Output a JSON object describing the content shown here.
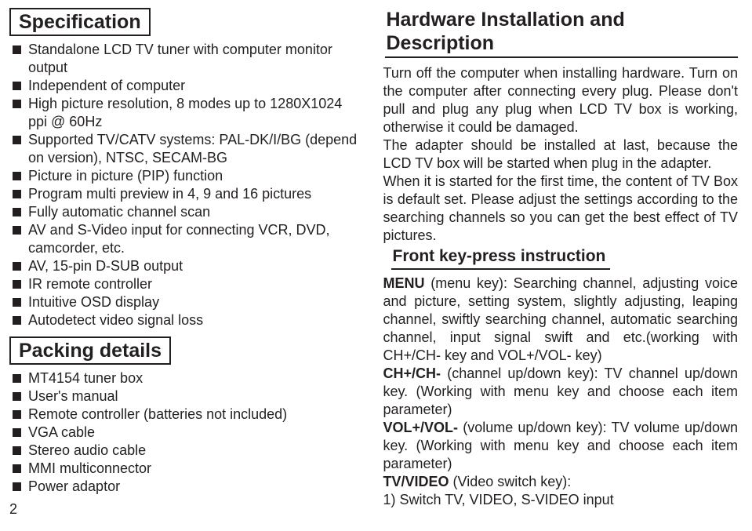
{
  "left": {
    "spec_title": "Specification",
    "spec_items": [
      "Standalone LCD TV tuner with computer monitor output",
      "Independent of computer",
      "High picture resolution, 8 modes up to 1280X1024 ppi @ 60Hz",
      "Supported TV/CATV systems: PAL-DK/I/BG (depend on version), NTSC, SECAM-BG",
      "Picture in picture (PIP) function",
      "Program multi preview in 4, 9 and 16 pictures",
      "Fully automatic channel scan",
      "AV and S-Video input for connecting VCR, DVD, camcorder, etc.",
      "AV, 15-pin D-SUB output",
      "IR remote controller",
      "Intuitive OSD display",
      "Autodetect video signal loss"
    ],
    "pack_title": "Packing details",
    "pack_items": [
      "MT4154 tuner box",
      "User's manual",
      "Remote controller (batteries not included)",
      "VGA cable",
      "Stereo audio cable",
      "MMI multiconnector",
      "Power adaptor"
    ],
    "page_number": "2"
  },
  "right": {
    "hw_title": "Hardware Installation and Description",
    "hw_body": "Turn off the computer when installing hardware. Turn on the computer after connecting every plug. Please don't pull and plug any plug when LCD TV box is working, otherwise it could be damaged.\nThe adapter should be installed at last, because the LCD TV box will be started when plug in the adapter.\nWhen it is started for the first time, the content of TV Box is default set. Please adjust the settings according to the searching channels so you can get the best effect of TV pictures.",
    "fk_title": "Front key-press instruction",
    "fk_lines": [
      {
        "b": "MENU",
        "t": " (menu key): Searching channel, adjusting voice and picture, setting system, slightly adjusting, leaping channel, swiftly searching channel, automatic searching channel, input signal swift and etc.(working with CH+/CH- key and VOL+/VOL- key)"
      },
      {
        "b": "CH+/CH-",
        "t": " (channel up/down key): TV channel up/down key. (Working with menu key and choose each item parameter)"
      },
      {
        "b": "VOL+/VOL-",
        "t": " (volume up/down key): TV volume up/down key. (Working with menu key and choose each item parameter)"
      },
      {
        "b": "TV/VIDEO",
        "t": " (Video switch key):"
      },
      {
        "b": "",
        "t": "1)  Switch TV, VIDEO, S-VIDEO input"
      }
    ]
  }
}
